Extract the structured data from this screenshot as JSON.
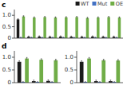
{
  "chart_data": [
    {
      "type": "bar",
      "title": "c",
      "categories": [
        null,
        null,
        null,
        null,
        null,
        null,
        null,
        null,
        null,
        null
      ],
      "series": [
        {
          "name": "WT",
          "color": "#1a1a1a",
          "values": [
            0.82,
            0.06,
            0.07,
            0.06,
            0.07,
            0.06,
            0.06,
            0.07,
            0.06,
            0.06
          ],
          "error": 0.03
        },
        {
          "name": "Mut",
          "color": "#4472c4",
          "values": [
            0.03,
            0.03,
            0.03,
            0.03,
            0.03,
            0.03,
            0.03,
            0.03,
            0.03,
            0.03
          ],
          "error": 0.01
        },
        {
          "name": "OE",
          "color": "#70ad47",
          "values": [
            0.95,
            0.9,
            0.92,
            0.9,
            0.91,
            0.92,
            0.88,
            0.9,
            0.92,
            0.9
          ],
          "error": 0.03
        }
      ],
      "ylim": [
        0,
        1.25
      ],
      "yticks": [
        0,
        0.5,
        {
          "value": 1.0,
          "label": "1.0"
        }
      ],
      "grid": false,
      "legend": "upper right"
    },
    {
      "type": "bar",
      "title": "d",
      "categories": [
        null,
        null,
        null
      ],
      "series": [
        {
          "color": "#1a1a1a",
          "values": [
            0.82,
            0.06,
            0.07
          ],
          "error": 0.04
        },
        {
          "color": "#4472c4",
          "values": [
            0.03,
            0.03,
            0.03
          ],
          "error": 0.01
        },
        {
          "color": "#70ad47",
          "values": [
            0.95,
            0.9,
            0.88
          ],
          "error": 0.04
        }
      ],
      "ylim": [
        0,
        1.25
      ],
      "yticks": [
        0,
        0.5,
        {
          "value": 1.0,
          "label": "1.0"
        }
      ],
      "grid": false
    },
    {
      "type": "bar",
      "categories": [
        null,
        null,
        null
      ],
      "series": [
        {
          "color": "#1a1a1a",
          "values": [
            0.82,
            0.06,
            0.06
          ],
          "error": 0.04
        },
        {
          "color": "#4472c4",
          "values": [
            0.03,
            0.03,
            0.03
          ],
          "error": 0.01
        },
        {
          "color": "#70ad47",
          "values": [
            0.95,
            0.88,
            0.87
          ],
          "error": 0.04
        }
      ],
      "ylim": [
        0,
        1.25
      ],
      "yticks": [
        0,
        0.5,
        {
          "value": 1.0,
          "label": "1.0"
        }
      ],
      "grid": false
    }
  ]
}
